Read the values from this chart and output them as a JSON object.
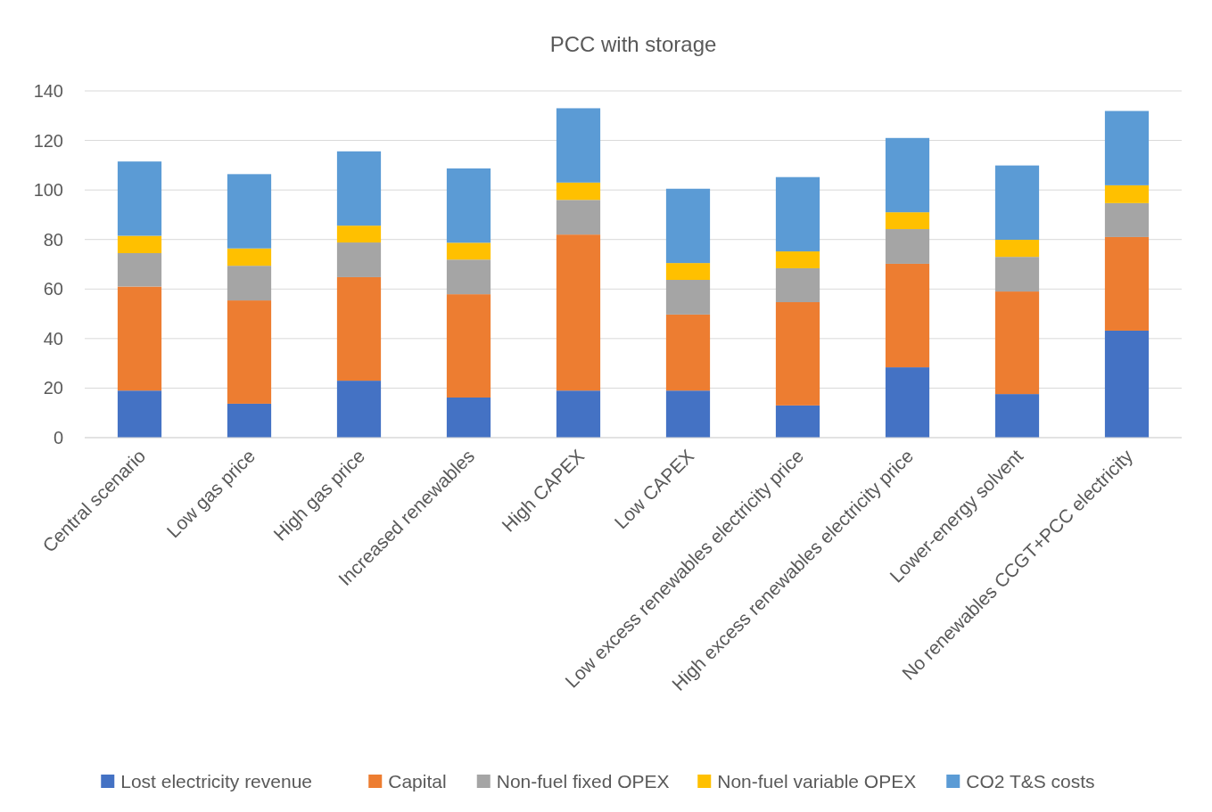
{
  "chart_data": {
    "type": "bar",
    "title": "PCC with storage",
    "stacked": true,
    "grid": "y",
    "legend": "bottom",
    "categories": [
      "Central scenario",
      "Low gas price",
      "High gas price",
      "Increased renewables",
      "High CAPEX",
      "Low CAPEX",
      "Low excess renewables electricity price",
      "High excess renewables electricity price",
      "Lower-energy solvent",
      "No renewables CCGT+PCC electricity"
    ],
    "ylim": [
      0,
      140
    ],
    "yticks": [
      0,
      20,
      40,
      60,
      80,
      100,
      120,
      140
    ],
    "series": [
      {
        "name": "Lost electricity revenue",
        "color": "#4472c4",
        "values": [
          19,
          13.7,
          23,
          16.2,
          19,
          19,
          13,
          28.4,
          17.6,
          43.2
        ]
      },
      {
        "name": "Capital",
        "color": "#ed7d31",
        "values": [
          42,
          41.7,
          41.8,
          41.7,
          63,
          30.7,
          41.7,
          41.8,
          41.4,
          37.8
        ]
      },
      {
        "name": "Non-fuel fixed OPEX",
        "color": "#a5a5a5",
        "values": [
          13.5,
          14,
          14,
          14,
          14,
          14,
          13.7,
          14,
          14,
          13.7
        ]
      },
      {
        "name": "Non-fuel variable OPEX",
        "color": "#ffc000",
        "values": [
          7,
          7,
          6.8,
          6.8,
          7,
          6.8,
          6.8,
          6.8,
          6.9,
          7.2
        ]
      },
      {
        "name": "CO2 T&S costs",
        "color": "#5b9bd5",
        "values": [
          30,
          30,
          30,
          30,
          30,
          30,
          30,
          30,
          30,
          30
        ]
      }
    ]
  }
}
